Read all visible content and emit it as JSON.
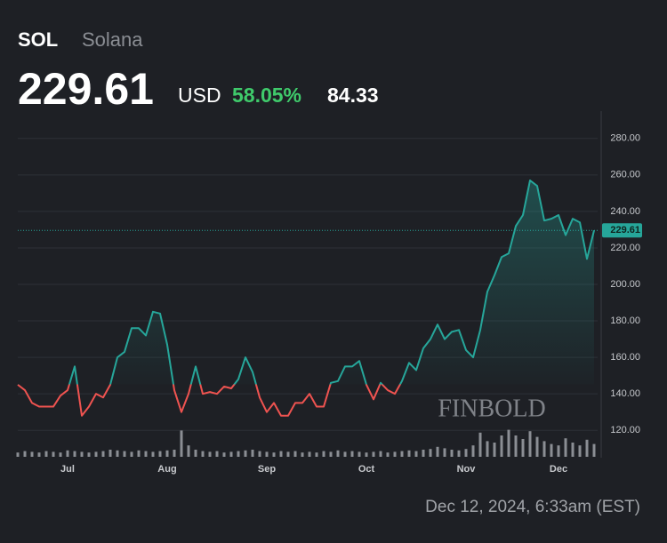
{
  "header": {
    "ticker": "SOL",
    "name": "Solana",
    "price": 229.61,
    "currency": "USD",
    "change_pct": "58.05%",
    "change_abs": "84.33"
  },
  "footer": "Dec 12, 2024, 6:33am (EST)",
  "watermark": "FINBOLD",
  "chart_data": {
    "type": "line",
    "categories": [
      null,
      null,
      null,
      null,
      null,
      null,
      null,
      "Jul",
      null,
      null,
      null,
      null,
      null,
      null,
      null,
      null,
      null,
      null,
      null,
      null,
      null,
      "Aug",
      null,
      null,
      null,
      null,
      null,
      null,
      null,
      null,
      null,
      null,
      null,
      null,
      null,
      "Sep",
      null,
      null,
      null,
      null,
      null,
      null,
      null,
      null,
      null,
      null,
      null,
      null,
      null,
      "Oct",
      null,
      null,
      null,
      null,
      null,
      null,
      null,
      null,
      null,
      null,
      null,
      null,
      null,
      "Nov",
      null,
      null,
      null,
      null,
      null,
      null,
      null,
      null,
      null,
      null,
      null,
      null,
      "Dec",
      null,
      null,
      null,
      null,
      null
    ],
    "values": [
      145,
      142,
      135,
      133,
      133,
      133,
      139,
      142,
      155,
      128,
      133,
      140,
      138,
      145,
      160,
      163,
      176,
      176,
      172,
      185,
      184,
      167,
      142,
      130,
      140,
      155,
      140,
      141,
      140,
      144,
      143,
      148,
      160,
      152,
      138,
      130,
      135,
      128,
      128,
      135,
      135,
      140,
      133,
      133,
      146,
      147,
      155,
      155,
      158,
      145,
      137,
      146,
      142,
      140,
      147,
      157,
      153,
      165,
      170,
      178,
      170,
      174,
      175,
      164,
      160,
      175,
      196,
      205,
      215,
      217,
      232,
      238,
      257,
      254,
      235,
      236,
      238,
      227,
      236,
      234,
      214,
      229.61
    ],
    "volume": [
      6,
      8,
      7,
      6,
      8,
      7,
      6,
      9,
      8,
      7,
      6,
      7,
      8,
      10,
      9,
      8,
      7,
      9,
      8,
      7,
      8,
      9,
      10,
      37,
      16,
      10,
      8,
      7,
      8,
      6,
      7,
      8,
      9,
      10,
      8,
      7,
      6,
      8,
      7,
      8,
      6,
      7,
      6,
      8,
      7,
      9,
      7,
      8,
      7,
      6,
      7,
      8,
      6,
      7,
      8,
      9,
      8,
      10,
      11,
      14,
      12,
      10,
      9,
      11,
      16,
      34,
      22,
      20,
      30,
      38,
      30,
      25,
      36,
      28,
      22,
      18,
      16,
      26,
      20,
      16,
      24,
      18
    ],
    "color": "#26a69a",
    "down_color": "#ef5350",
    "volume_color": "#8b8e94",
    "baseline": 145.28,
    "ylim": [
      105,
      295
    ],
    "y2lim": [
      0,
      100
    ],
    "yticks": [
      {
        "value": 120,
        "label": "120.00"
      },
      {
        "value": 140,
        "label": "140.00"
      },
      {
        "value": 160,
        "label": "160.00"
      },
      {
        "value": 180,
        "label": "180.00"
      },
      {
        "value": 200,
        "label": "200.00"
      },
      {
        "value": 220,
        "label": "220.00"
      },
      {
        "value": 240,
        "label": "240.00"
      },
      {
        "value": 260,
        "label": "260.00"
      },
      {
        "value": 280,
        "label": "280.00"
      }
    ],
    "grid": true
  }
}
